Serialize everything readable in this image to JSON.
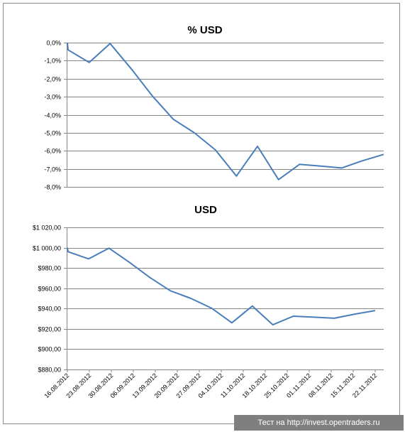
{
  "chart_data": [
    {
      "type": "line",
      "title": "% USD",
      "xlabel": "",
      "ylabel": "",
      "ylim": [
        -8,
        0
      ],
      "y_ticks": [
        "0,0%",
        "-1,0%",
        "-2,0%",
        "-3,0%",
        "-4,0%",
        "-5,0%",
        "-6,0%",
        "-7,0%",
        "-8,0%"
      ],
      "grid": true,
      "series": [
        {
          "values": [
            0.0,
            -0.4,
            -1.1,
            -0.05,
            -1.45,
            -2.95,
            -4.25,
            -5.0,
            -5.95,
            -7.4,
            -5.75,
            -7.6,
            -6.75,
            -6.85,
            -6.95,
            -6.55,
            -6.2
          ]
        }
      ]
    },
    {
      "type": "line",
      "title": "USD",
      "xlabel": "",
      "ylabel": "",
      "ylim": [
        880,
        1020
      ],
      "y_ticks": [
        "$1 020,00",
        "$1 000,00",
        "$980,00",
        "$960,00",
        "$940,00",
        "$920,00",
        "$900,00",
        "$880,00"
      ],
      "grid": true,
      "x_ticks": [
        "16.08.2012",
        "23.08.2012",
        "30.08.2012",
        "06.09.2012",
        "13.09.2012",
        "20.09.2012",
        "27.09.2012",
        "04.10.2012",
        "11.10.2012",
        "18.10.2012",
        "25.10.2012",
        "01.11.2012",
        "08.11.2012",
        "15.11.2012",
        "22.11.2012"
      ],
      "series": [
        {
          "values": [
            1000,
            996,
            989,
            999.5,
            985.5,
            970.5,
            957.5,
            950,
            940.5,
            926,
            942.5,
            924,
            932.5,
            931.5,
            930.5,
            934.5,
            938
          ]
        }
      ]
    }
  ],
  "watermark": "Тест на http://invest.opentraders.ru"
}
